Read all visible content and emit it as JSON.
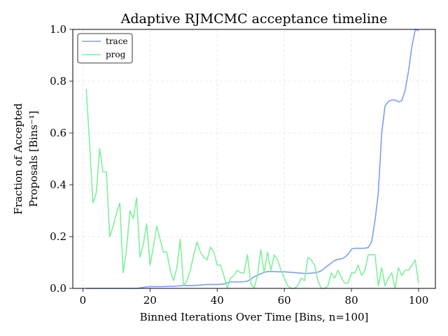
{
  "chart_data": {
    "type": "line",
    "title": "Adaptive RJMCMC acceptance timeline",
    "xlabel": "Binned Iterations Over Time [Bins, n=100]",
    "ylabel_line1": "Fraction of Accepted",
    "ylabel_line2": "Proposals [Bins⁻¹]",
    "xlim": [
      -3,
      105
    ],
    "ylim": [
      0,
      1
    ],
    "x_ticks": [
      0,
      20,
      40,
      60,
      80,
      100
    ],
    "x_tick_labels": [
      "0",
      "20",
      "40",
      "60",
      "80",
      "100"
    ],
    "y_ticks": [
      0,
      0.2,
      0.4,
      0.6,
      0.8,
      1.0
    ],
    "y_tick_labels": [
      "0.0",
      "0.2",
      "0.4",
      "0.6",
      "0.8",
      "1.0"
    ],
    "grid": true,
    "legend_position": "top-left",
    "x": [
      1,
      2,
      3,
      4,
      5,
      6,
      7,
      8,
      9,
      10,
      11,
      12,
      13,
      14,
      15,
      16,
      17,
      18,
      19,
      20,
      21,
      22,
      23,
      24,
      25,
      26,
      27,
      28,
      29,
      30,
      31,
      32,
      33,
      34,
      35,
      36,
      37,
      38,
      39,
      40,
      41,
      42,
      43,
      44,
      45,
      46,
      47,
      48,
      49,
      50,
      51,
      52,
      53,
      54,
      55,
      56,
      57,
      58,
      59,
      60,
      61,
      62,
      63,
      64,
      65,
      66,
      67,
      68,
      69,
      70,
      71,
      72,
      73,
      74,
      75,
      76,
      77,
      78,
      79,
      80,
      81,
      82,
      83,
      84,
      85,
      86,
      87,
      88,
      89,
      90,
      91,
      92,
      93,
      94,
      95,
      96,
      97,
      98,
      99,
      100
    ],
    "series": [
      {
        "name": "trace",
        "color": "#7b9ff0",
        "values": [
          0,
          0,
          0,
          0,
          0,
          0,
          0,
          0,
          0,
          0,
          0,
          0,
          0,
          0,
          0,
          0,
          0.002,
          0.004,
          0.006,
          0.007,
          0.007,
          0.007,
          0.007,
          0.007,
          0.008,
          0.008,
          0.008,
          0.009,
          0.01,
          0.011,
          0.011,
          0.011,
          0.011,
          0.012,
          0.013,
          0.014,
          0.015,
          0.015,
          0.015,
          0.015,
          0.016,
          0.017,
          0.022,
          0.025,
          0.025,
          0.025,
          0.025,
          0.026,
          0.028,
          0.035,
          0.045,
          0.051,
          0.056,
          0.062,
          0.065,
          0.065,
          0.065,
          0.064,
          0.064,
          0.064,
          0.063,
          0.062,
          0.061,
          0.06,
          0.059,
          0.058,
          0.058,
          0.059,
          0.06,
          0.063,
          0.068,
          0.078,
          0.088,
          0.098,
          0.108,
          0.112,
          0.114,
          0.12,
          0.132,
          0.152,
          0.155,
          0.155,
          0.155,
          0.155,
          0.158,
          0.18,
          0.26,
          0.37,
          0.6,
          0.705,
          0.722,
          0.727,
          0.728,
          0.72,
          0.725,
          0.765,
          0.84,
          0.935,
          1.0,
          0.995
        ]
      },
      {
        "name": "prog",
        "color": "#7ff09a",
        "values": [
          0.77,
          0.56,
          0.33,
          0.37,
          0.54,
          0.45,
          0.45,
          0.2,
          0.24,
          0.29,
          0.33,
          0.06,
          0.15,
          0.3,
          0.27,
          0.35,
          0.12,
          0.17,
          0.25,
          0.09,
          0.16,
          0.24,
          0.19,
          0.14,
          0.14,
          0.07,
          0.03,
          0.08,
          0.19,
          0.01,
          0.03,
          0.07,
          0.13,
          0.18,
          0.14,
          0.12,
          0.11,
          0.16,
          0.14,
          0.09,
          0.09,
          0.05,
          0.0,
          0.04,
          0.05,
          0.07,
          0.06,
          0.06,
          0.13,
          0.02,
          0.0,
          0.05,
          0.15,
          0.06,
          0.14,
          0.07,
          0.13,
          0.11,
          0.07,
          0.04,
          0.01,
          0.0,
          0.0,
          0.01,
          0.04,
          0.03,
          0.12,
          0.11,
          0.09,
          0.03,
          0.0,
          0.0,
          0.01,
          0.06,
          0.04,
          0.07,
          0.04,
          0.02,
          0.02,
          0.06,
          0.06,
          0.09,
          0.05,
          0.07,
          0.13,
          0.13,
          0.13,
          0.01,
          0.08,
          0.01,
          0.04,
          0.06,
          0.0,
          0.08,
          0.05,
          0.07,
          0.07,
          0.09,
          0.11,
          0.02
        ]
      }
    ]
  }
}
